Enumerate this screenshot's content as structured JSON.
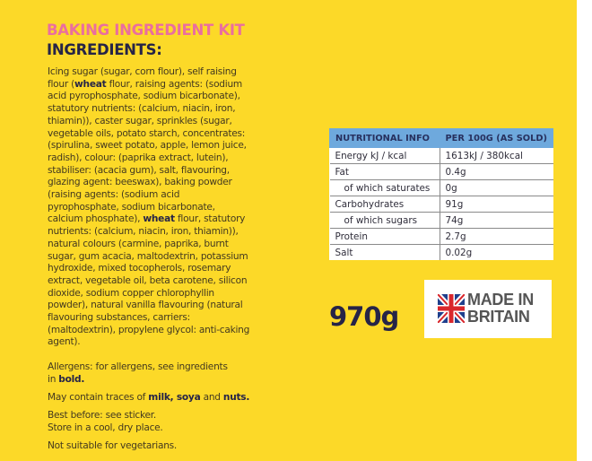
{
  "title": "BAKING INGREDIENT KIT",
  "ingredients_heading": "INGREDIENTS:",
  "ingredients_lines": [
    [
      {
        "t": "Icing sugar (sugar, corn flour), self raising"
      }
    ],
    [
      {
        "t": "flour ("
      },
      {
        "t": "wheat",
        "b": true
      },
      {
        "t": " flour, raising agents: (sodium"
      }
    ],
    [
      {
        "t": "acid pyrophosphate, sodium bicarbonate),"
      }
    ],
    [
      {
        "t": "statutory nutrients: (calcium, niacin, iron,"
      }
    ],
    [
      {
        "t": "thiamin)), caster sugar, sprinkles (sugar,"
      }
    ],
    [
      {
        "t": "vegetable oils, potato starch, concentrates:"
      }
    ],
    [
      {
        "t": "(spirulina, sweet potato, apple, lemon juice,"
      }
    ],
    [
      {
        "t": "radish), colour: (paprika extract, lutein),"
      }
    ],
    [
      {
        "t": "stabiliser: (acacia gum), salt, flavouring,"
      }
    ],
    [
      {
        "t": "glazing agent: beeswax), baking powder"
      }
    ],
    [
      {
        "t": "(raising agents: (sodium acid"
      }
    ],
    [
      {
        "t": "pyrophosphate, sodium bicarbonate,"
      }
    ],
    [
      {
        "t": "calcium phosphate), "
      },
      {
        "t": "wheat",
        "b": true
      },
      {
        "t": " flour, statutory"
      }
    ],
    [
      {
        "t": "nutrients: (calcium, niacin, iron, thiamin)),"
      }
    ],
    [
      {
        "t": "natural colours (carmine, paprika, burnt"
      }
    ],
    [
      {
        "t": "sugar, gum acacia, maltodextrin, potassium"
      }
    ],
    [
      {
        "t": "hydroxide, mixed tocopherols, rosemary"
      }
    ],
    [
      {
        "t": "extract, vegetable oil, beta carotene, silicon"
      }
    ],
    [
      {
        "t": "dioxide, sodium copper chlorophyllin"
      }
    ],
    [
      {
        "t": "powder), natural vanilla flavouring (natural"
      }
    ],
    [
      {
        "t": "flavouring substances, carriers:"
      }
    ],
    [
      {
        "t": "(maltodextrin), propylene glycol: anti-caking"
      }
    ],
    [
      {
        "t": "agent)."
      }
    ]
  ],
  "notes": [
    [
      {
        "t": "Allergens: for allergens, see ingredients"
      },
      {
        "br": true
      },
      {
        "t": "in "
      },
      {
        "t": "bold.",
        "b": true
      }
    ],
    [
      {
        "t": "May contain traces of "
      },
      {
        "t": "milk, soya",
        "b": true
      },
      {
        "t": " and "
      },
      {
        "t": "nuts.",
        "b": true
      }
    ],
    [
      {
        "t": "Best before: see sticker."
      },
      {
        "br": true
      },
      {
        "t": "Store in a cool, dry place."
      }
    ],
    [
      {
        "t": "Not suitable for vegetarians."
      }
    ]
  ],
  "nutrition": {
    "headers": [
      "NUTRITIONAL INFO",
      "PER 100G (AS SOLD)"
    ],
    "rows": [
      {
        "label": "Energy kJ / kcal",
        "value": "1613kJ / 380kcal",
        "sub": false
      },
      {
        "label": "Fat",
        "value": "0.4g",
        "sub": false
      },
      {
        "label": "of which saturates",
        "value": "0g",
        "sub": true
      },
      {
        "label": "Carbohydrates",
        "value": "91g",
        "sub": false
      },
      {
        "label": "of which sugars",
        "value": "74g",
        "sub": true
      },
      {
        "label": "Protein",
        "value": "2.7g",
        "sub": false
      },
      {
        "label": "Salt",
        "value": "0.02g",
        "sub": false
      }
    ]
  },
  "weight": "970g",
  "badge": {
    "line1": "MADE IN",
    "line2": "BRITAIN",
    "icon": "union-jack-flag-icon"
  },
  "colors": {
    "background": "#fcd928",
    "title": "#ea6e9f",
    "table_header": "#6ea9dd",
    "bold_text": "#262447"
  }
}
